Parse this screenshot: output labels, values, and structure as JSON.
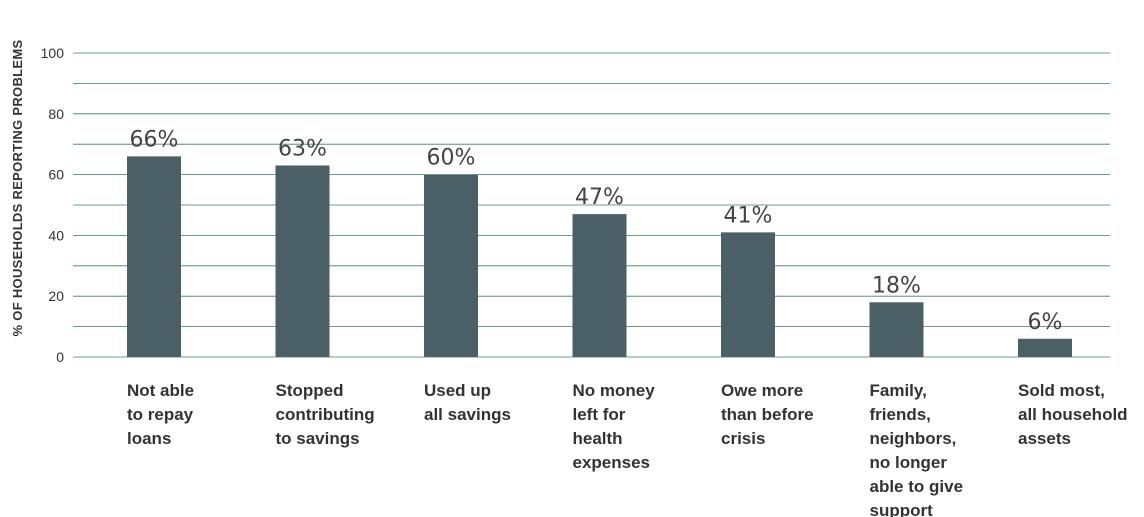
{
  "chart_data": {
    "type": "bar",
    "ylabel": "% OF HOUSEHOLDS REPORTING PROBLEMS",
    "xlabel": "",
    "ylim": [
      0,
      100
    ],
    "yticks": [
      0,
      20,
      40,
      60,
      80,
      100
    ],
    "grid": true,
    "bar_color": "#4a6066",
    "grid_color": "#3f7a6c",
    "categories": [
      [
        "Not able",
        "to repay",
        "loans"
      ],
      [
        "Stopped",
        "contributing",
        "to savings"
      ],
      [
        "Used up",
        "all savings"
      ],
      [
        "No money",
        "left for",
        "health",
        "expenses"
      ],
      [
        "Owe more",
        "than before",
        "crisis"
      ],
      [
        "Family,",
        "friends,",
        "neighbors,",
        "no longer",
        "able to give",
        "support"
      ],
      [
        "Sold most,",
        "all household",
        "assets"
      ]
    ],
    "values": [
      66,
      63,
      60,
      47,
      41,
      18,
      6
    ],
    "data_labels": [
      "66%",
      "63%",
      "60%",
      "47%",
      "41%",
      "18%",
      "6%"
    ]
  }
}
